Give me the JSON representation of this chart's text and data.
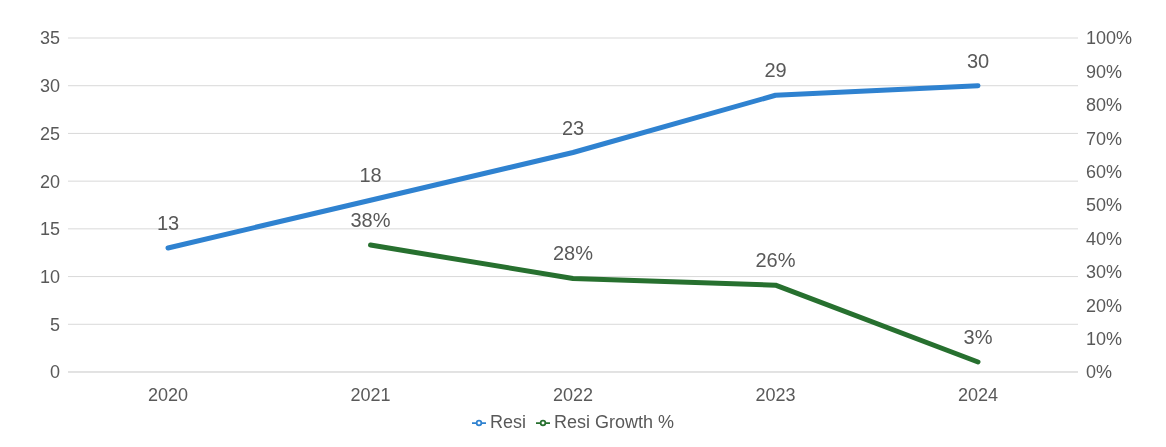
{
  "chart_data": {
    "type": "line",
    "categories": [
      "2020",
      "2021",
      "2022",
      "2023",
      "2024"
    ],
    "series": [
      {
        "name": "Resi",
        "color": "#2f82d0",
        "values": [
          13,
          18,
          23,
          29,
          30
        ],
        "value_labels": [
          "13",
          "18",
          "23",
          "29",
          "30"
        ]
      },
      {
        "name": "Resi Growth %",
        "color": "#27702f",
        "axis": "y2",
        "values": [
          null,
          38,
          28,
          26,
          3
        ],
        "value_labels": [
          null,
          "38%",
          "28%",
          "26%",
          "3%"
        ]
      }
    ],
    "ylim": [
      0,
      35
    ],
    "yticks": [
      0,
      5,
      10,
      15,
      20,
      25,
      30,
      35
    ],
    "y2lim": [
      0,
      100
    ],
    "y2ticks": [
      {
        "value": 0,
        "label": "0%"
      },
      {
        "value": 10,
        "label": "10%"
      },
      {
        "value": 20,
        "label": "20%"
      },
      {
        "value": 30,
        "label": "30%"
      },
      {
        "value": 40,
        "label": "40%"
      },
      {
        "value": 50,
        "label": "50%"
      },
      {
        "value": 60,
        "label": "60%"
      },
      {
        "value": 70,
        "label": "70%"
      },
      {
        "value": 80,
        "label": "80%"
      },
      {
        "value": 90,
        "label": "90%"
      },
      {
        "value": 100,
        "label": "100%"
      }
    ],
    "grid": "y",
    "legend": "bottom",
    "marker": "none",
    "line_style": "solid"
  }
}
